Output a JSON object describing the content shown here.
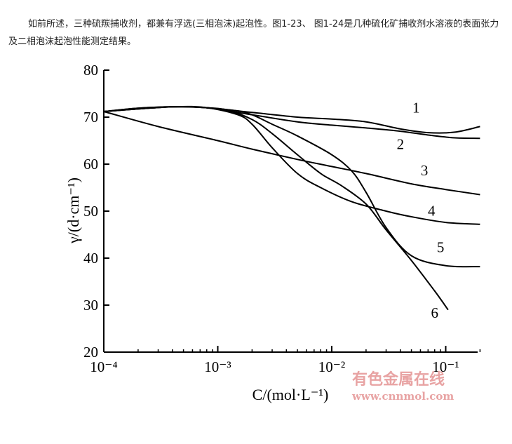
{
  "intro_text": "如前所述，三种硫羰捕收剂，都兼有浮选(三相泡沫)起泡性。图1-23、 图1-24是几种硫化矿捕收剂水溶液的表面张力及二相泡沫起泡性能测定结果。",
  "watermark": {
    "line1": "有色金属在线",
    "line2": "www.cnnmol.com"
  },
  "chart_data": {
    "type": "line",
    "title": "",
    "xlabel": "C/(mol·L⁻¹)",
    "ylabel": "γ/(d·cm⁻¹)",
    "x_scale": "log",
    "xlim": [
      0.0001,
      0.2
    ],
    "ylim": [
      20,
      80
    ],
    "x_ticks": [
      {
        "value": 0.0001,
        "label": "10⁻⁴"
      },
      {
        "value": 0.001,
        "label": "10⁻³"
      },
      {
        "value": 0.01,
        "label": "10⁻²"
      },
      {
        "value": 0.1,
        "label": "10⁻¹"
      }
    ],
    "y_ticks": [
      20,
      30,
      40,
      50,
      60,
      70,
      80
    ],
    "grid": false,
    "series": [
      {
        "name": "1",
        "x": [
          0.0001,
          0.0002,
          0.0004,
          0.0008,
          0.002,
          0.005,
          0.01,
          0.02,
          0.04,
          0.07,
          0.12,
          0.2
        ],
        "values": [
          71.2,
          71.9,
          72.2,
          72.0,
          71.0,
          70.0,
          69.6,
          69.0,
          67.5,
          66.7,
          66.8,
          68.0
        ]
      },
      {
        "name": "2",
        "x": [
          0.0001,
          0.0002,
          0.0004,
          0.0008,
          0.002,
          0.005,
          0.01,
          0.02,
          0.04,
          0.07,
          0.12,
          0.2
        ],
        "values": [
          71.2,
          71.9,
          72.2,
          72.0,
          70.5,
          69.0,
          68.3,
          67.7,
          67.0,
          66.2,
          65.6,
          65.5
        ]
      },
      {
        "name": "3",
        "x": [
          0.0001,
          0.0003,
          0.001,
          0.002,
          0.005,
          0.01,
          0.02,
          0.05,
          0.1,
          0.2
        ],
        "values": [
          71.2,
          68.0,
          65.0,
          63.2,
          61.0,
          59.5,
          58.0,
          55.8,
          54.6,
          53.5
        ]
      },
      {
        "name": "4",
        "x": [
          0.0001,
          0.0004,
          0.0008,
          0.0015,
          0.002,
          0.003,
          0.005,
          0.008,
          0.015,
          0.03,
          0.05,
          0.1,
          0.2
        ],
        "values": [
          71.2,
          72.2,
          72.0,
          70.5,
          68.5,
          63.5,
          58.0,
          55.0,
          52.0,
          50.0,
          48.8,
          47.6,
          47.2
        ]
      },
      {
        "name": "5",
        "x": [
          0.0001,
          0.0004,
          0.0008,
          0.0015,
          0.002,
          0.003,
          0.005,
          0.01,
          0.015,
          0.02,
          0.03,
          0.05,
          0.1,
          0.2
        ],
        "values": [
          71.2,
          72.2,
          72.0,
          71.3,
          70.5,
          68.5,
          66.0,
          62.0,
          58.5,
          54.0,
          46.5,
          40.5,
          38.4,
          38.2
        ]
      },
      {
        "name": "6",
        "x": [
          0.0001,
          0.0004,
          0.0008,
          0.0012,
          0.002,
          0.003,
          0.005,
          0.008,
          0.012,
          0.02,
          0.03,
          0.05,
          0.08,
          0.105
        ],
        "values": [
          71.2,
          72.2,
          72.0,
          71.5,
          69.5,
          66.5,
          62.0,
          58.0,
          55.5,
          51.5,
          46.0,
          39.5,
          33.0,
          29.0
        ]
      }
    ],
    "annotations": [
      "1",
      "2",
      "3",
      "4",
      "5",
      "6"
    ]
  }
}
